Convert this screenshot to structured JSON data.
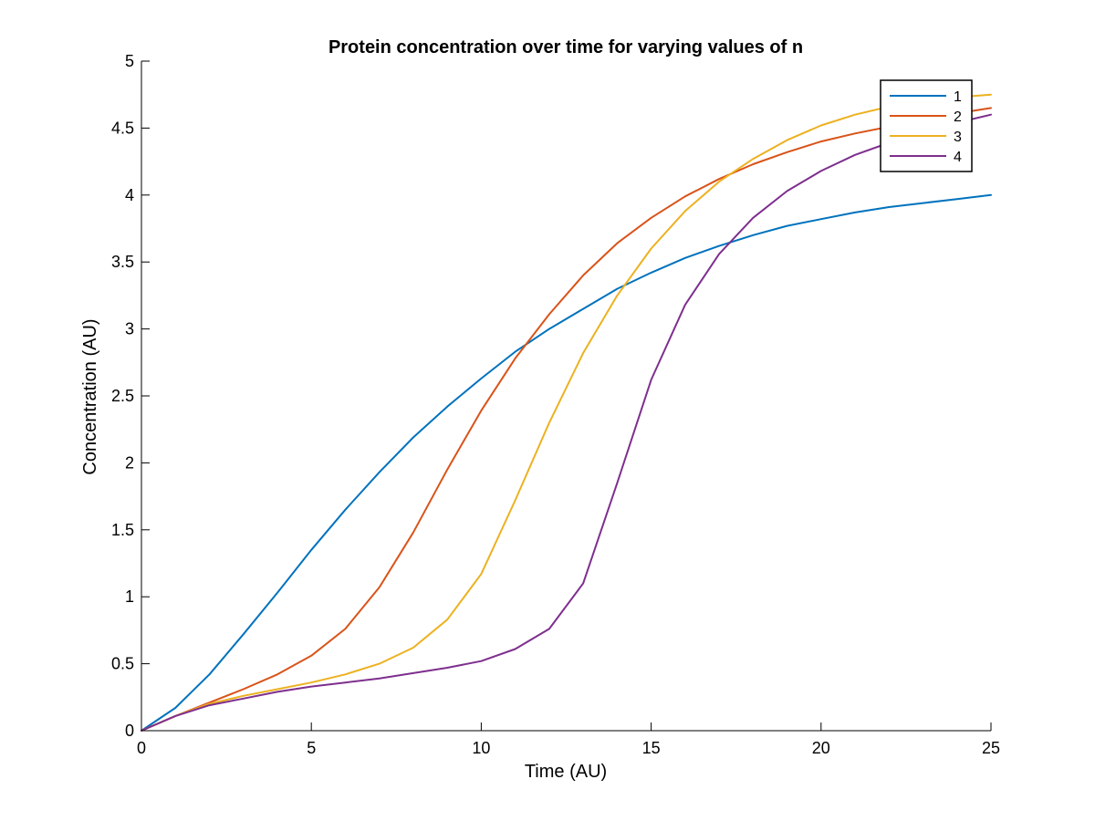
{
  "chart_data": {
    "type": "line",
    "title": "Protein concentration over time for varying values of n",
    "xlabel": "Time (AU)",
    "ylabel": "Concentration (AU)",
    "xlim": [
      0,
      25
    ],
    "ylim": [
      0,
      5
    ],
    "x_ticks": [
      "0",
      "5",
      "10",
      "15",
      "20",
      "25"
    ],
    "y_ticks": [
      "0",
      "0.5",
      "1",
      "1.5",
      "2",
      "2.5",
      "3",
      "3.5",
      "4",
      "4.5",
      "5"
    ],
    "grid": false,
    "legend_position": "top-right",
    "x": [
      0,
      1,
      2,
      3,
      4,
      5,
      6,
      7,
      8,
      9,
      10,
      11,
      12,
      13,
      14,
      15,
      16,
      17,
      18,
      19,
      20,
      21,
      22,
      23,
      24,
      25
    ],
    "series": [
      {
        "name": "1",
        "color": "#0072BD",
        "values": [
          0,
          0.17,
          0.42,
          0.72,
          1.03,
          1.35,
          1.65,
          1.93,
          2.19,
          2.42,
          2.63,
          2.83,
          3.0,
          3.15,
          3.3,
          3.42,
          3.53,
          3.62,
          3.7,
          3.77,
          3.82,
          3.87,
          3.91,
          3.94,
          3.97,
          4.0
        ]
      },
      {
        "name": "2",
        "color": "#D95319",
        "values": [
          0,
          0.11,
          0.21,
          0.31,
          0.42,
          0.56,
          0.76,
          1.07,
          1.48,
          1.95,
          2.39,
          2.78,
          3.11,
          3.4,
          3.64,
          3.83,
          3.99,
          4.12,
          4.23,
          4.32,
          4.4,
          4.46,
          4.51,
          4.56,
          4.61,
          4.65
        ]
      },
      {
        "name": "3",
        "color": "#EDB120",
        "values": [
          0,
          0.11,
          0.2,
          0.26,
          0.31,
          0.36,
          0.42,
          0.5,
          0.62,
          0.83,
          1.17,
          1.72,
          2.3,
          2.82,
          3.25,
          3.6,
          3.88,
          4.1,
          4.27,
          4.41,
          4.52,
          4.6,
          4.66,
          4.7,
          4.73,
          4.75
        ]
      },
      {
        "name": "4",
        "color": "#7E2F8E",
        "values": [
          0,
          0.11,
          0.19,
          0.24,
          0.29,
          0.33,
          0.36,
          0.39,
          0.43,
          0.47,
          0.52,
          0.61,
          0.76,
          1.1,
          1.85,
          2.62,
          3.18,
          3.56,
          3.83,
          4.03,
          4.18,
          4.3,
          4.39,
          4.47,
          4.54,
          4.6
        ]
      }
    ]
  }
}
